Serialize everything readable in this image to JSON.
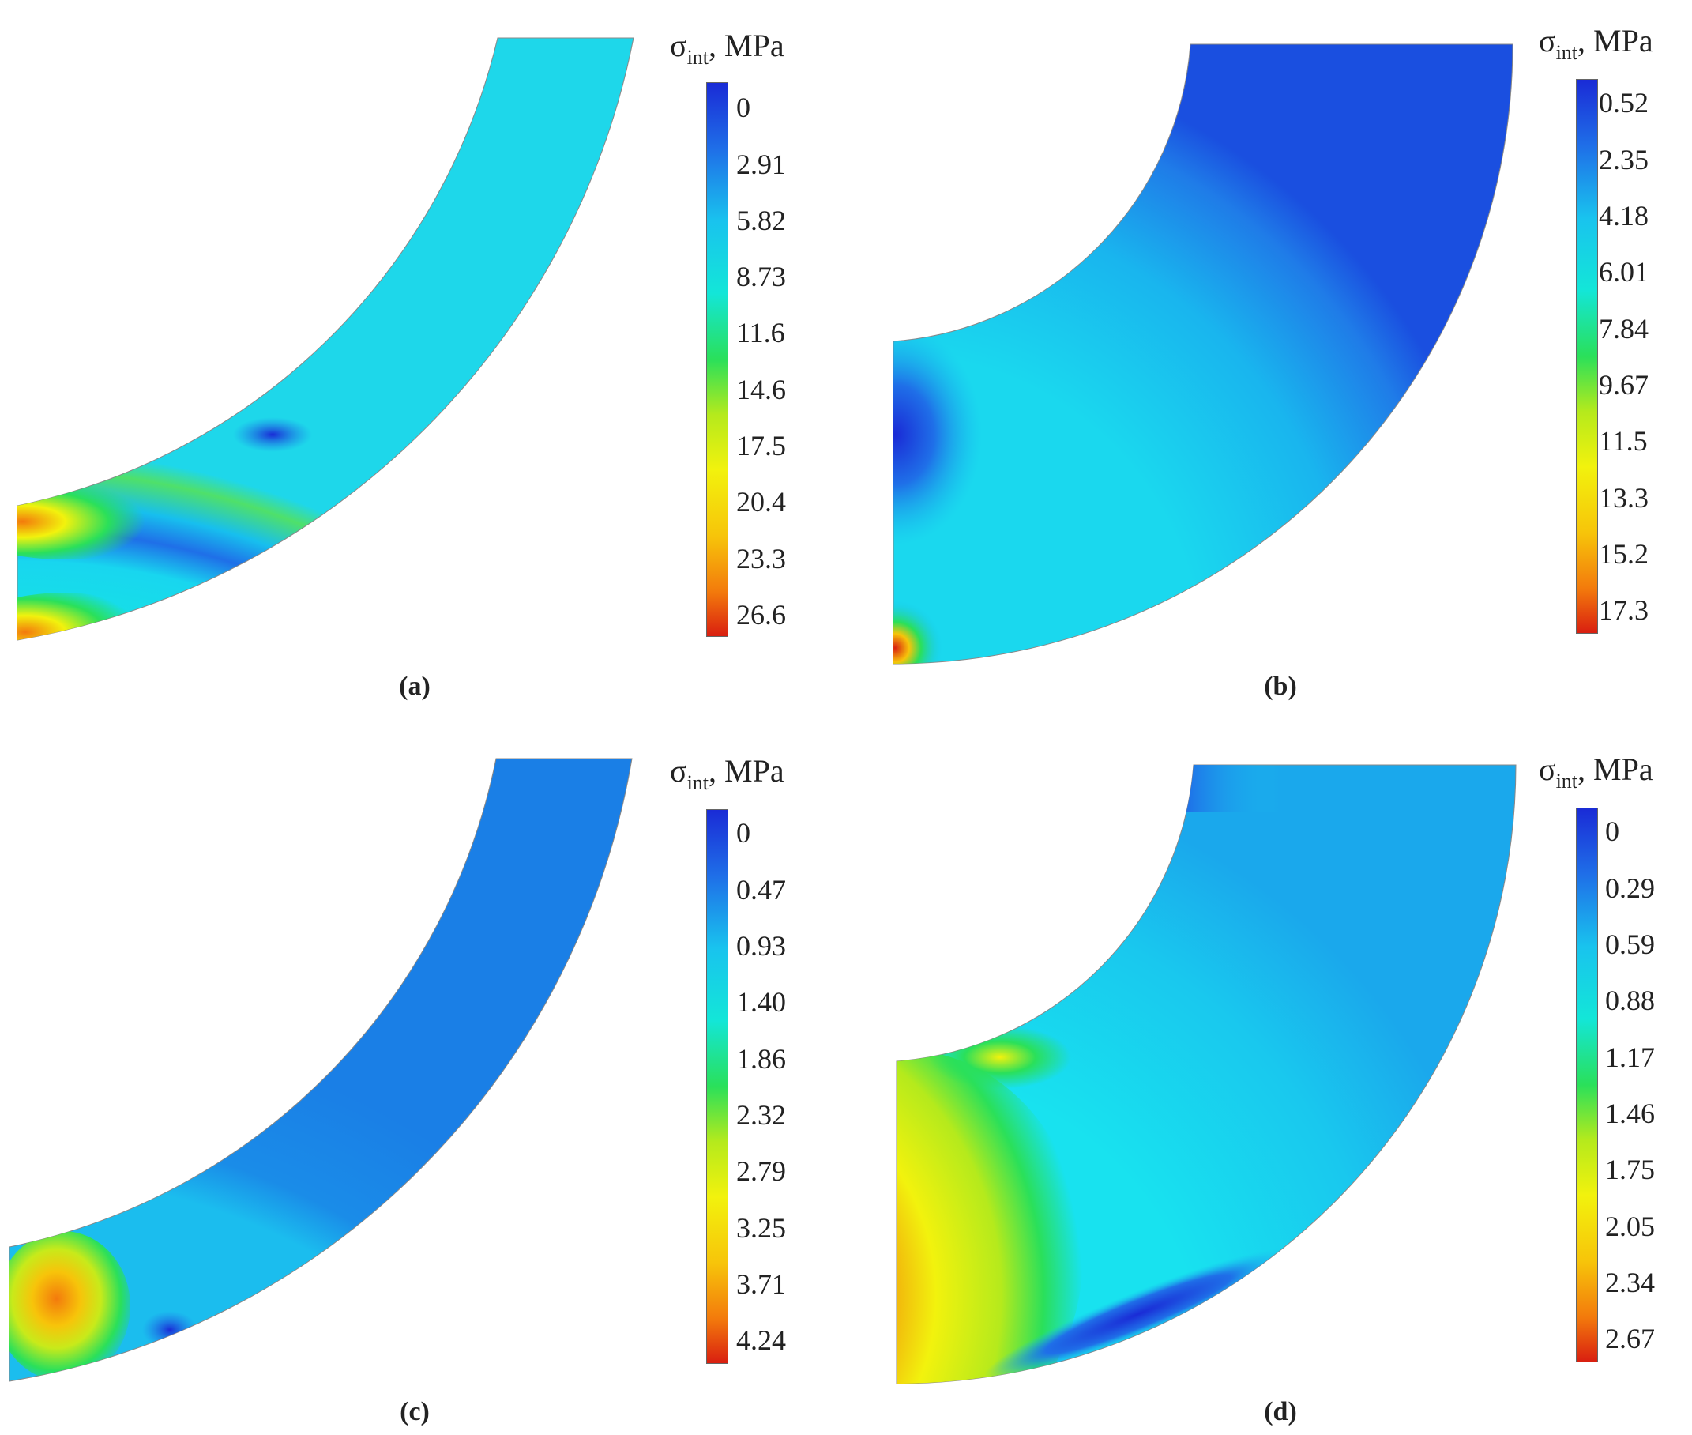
{
  "colormap": [
    "#1a2bd6",
    "#1f6fe8",
    "#19c3ee",
    "#13e6d8",
    "#2ae05a",
    "#b5ea1c",
    "#f2f20d",
    "#f7c40a",
    "#f37a0c",
    "#d91f10"
  ],
  "panels": [
    {
      "caption": "(a)",
      "quantity": "σ",
      "subscript": "int",
      "unit": ", MPa",
      "ticks": [
        "0",
        "2.91",
        "5.82",
        "8.73",
        "11.6",
        "14.6",
        "17.5",
        "20.4",
        "23.3",
        "26.6"
      ]
    },
    {
      "caption": "(b)",
      "quantity": "σ",
      "subscript": "int",
      "unit": ", MPa",
      "ticks": [
        "0.52",
        "2.35",
        "4.18",
        "6.01",
        "7.84",
        "9.67",
        "11.5",
        "13.3",
        "15.2",
        "17.3"
      ]
    },
    {
      "caption": "(c)",
      "quantity": "σ",
      "subscript": "int",
      "unit": ", MPa",
      "ticks": [
        "0",
        "0.47",
        "0.93",
        "1.40",
        "1.86",
        "2.32",
        "2.79",
        "3.25",
        "3.71",
        "4.24"
      ]
    },
    {
      "caption": "(d)",
      "quantity": "σ",
      "subscript": "int",
      "unit": ", MPa",
      "ticks": [
        "0",
        "0.29",
        "0.59",
        "0.88",
        "1.17",
        "1.46",
        "1.75",
        "2.05",
        "2.34",
        "2.67"
      ]
    }
  ]
}
